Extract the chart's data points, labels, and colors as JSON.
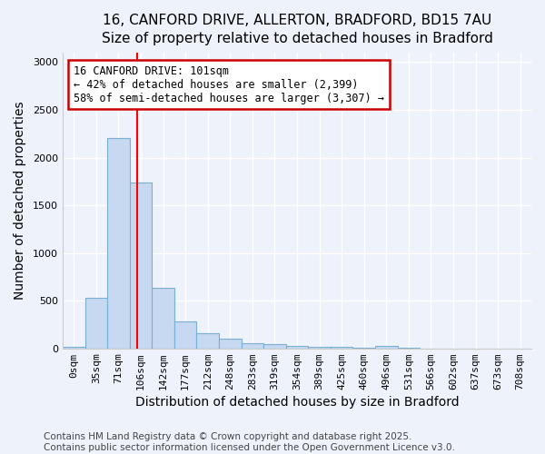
{
  "title_line1": "16, CANFORD DRIVE, ALLERTON, BRADFORD, BD15 7AU",
  "title_line2": "Size of property relative to detached houses in Bradford",
  "xlabel": "Distribution of detached houses by size in Bradford",
  "ylabel": "Number of detached properties",
  "categories": [
    "0sqm",
    "35sqm",
    "71sqm",
    "106sqm",
    "142sqm",
    "177sqm",
    "212sqm",
    "248sqm",
    "283sqm",
    "319sqm",
    "354sqm",
    "389sqm",
    "425sqm",
    "460sqm",
    "496sqm",
    "531sqm",
    "566sqm",
    "602sqm",
    "637sqm",
    "673sqm",
    "708sqm"
  ],
  "values": [
    20,
    530,
    2200,
    1740,
    630,
    280,
    160,
    100,
    55,
    40,
    30,
    20,
    15,
    8,
    25,
    3,
    0,
    0,
    0,
    0,
    0
  ],
  "bar_color": "#c6d9f0",
  "bar_edge_color": "#7aafd4",
  "background_color": "#eef2fb",
  "grid_color": "#ffffff",
  "annotation_text": "16 CANFORD DRIVE: 101sqm\n← 42% of detached houses are smaller (2,399)\n58% of semi-detached houses are larger (3,307) →",
  "annotation_box_color": "#ffffff",
  "annotation_box_edge": "#cc0000",
  "ylim": [
    0,
    3100
  ],
  "yticks": [
    0,
    500,
    1000,
    1500,
    2000,
    2500,
    3000
  ],
  "footer": "Contains HM Land Registry data © Crown copyright and database right 2025.\nContains public sector information licensed under the Open Government Licence v3.0.",
  "title_fontsize": 11,
  "subtitle_fontsize": 10,
  "axis_label_fontsize": 10,
  "tick_fontsize": 8,
  "footer_fontsize": 7.5,
  "annotation_fontsize": 8.5
}
